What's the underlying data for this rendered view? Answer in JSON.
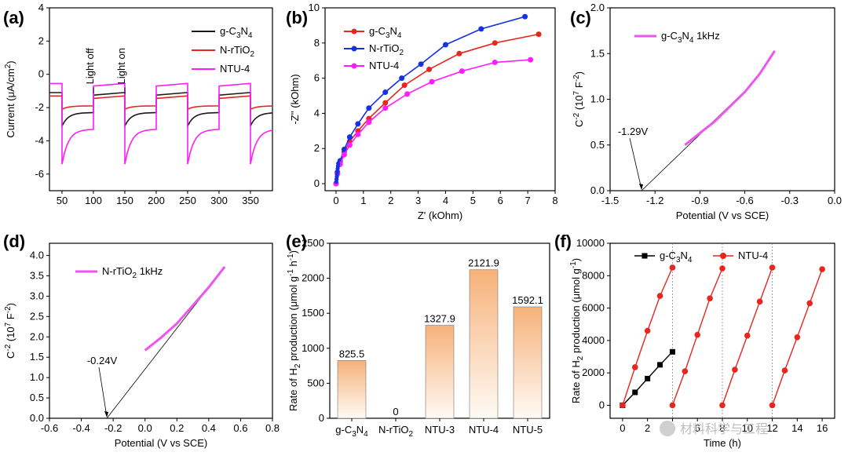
{
  "chart_data": [
    {
      "id": "a",
      "panel_label": "(a)",
      "type": "line",
      "xlabel": "",
      "ylabel": "Current (μA/cm²)",
      "xlim": [
        30,
        385
      ],
      "ylim": [
        -7,
        4
      ],
      "xticks": [
        50,
        100,
        150,
        200,
        250,
        300,
        350
      ],
      "yticks": [
        -6,
        -4,
        -2,
        0,
        2,
        4
      ],
      "xtick_labels": [
        "50",
        "100",
        "150",
        "200",
        "250",
        "300",
        "350"
      ],
      "ytick_labels": [
        "-6",
        "-4",
        "-2",
        "0",
        "2",
        "4"
      ],
      "annotations": [
        {
          "text": "Light off",
          "x": 100,
          "y": -0.5
        },
        {
          "text": "Light on",
          "x": 150,
          "y": -0.5
        }
      ],
      "legend": [
        "g-C3N4",
        "N-rTiO2",
        "NTU-4"
      ],
      "series": [
        {
          "name": "g-C3N4",
          "color": "#1a1a1a",
          "dark": -1.1,
          "peak": -3.1,
          "light": -2.3
        },
        {
          "name": "N-rTiO2",
          "color": "#e8261e",
          "dark": -1.3,
          "peak": -2.1,
          "light": -1.9
        },
        {
          "name": "NTU-4",
          "color": "#ff1cff",
          "dark": -0.55,
          "peak": -5.4,
          "light": -3.3
        }
      ],
      "light_on": [
        50,
        150,
        250,
        350
      ],
      "light_off": [
        100,
        200,
        300
      ]
    },
    {
      "id": "b",
      "panel_label": "(b)",
      "type": "line",
      "xlabel": "Z' (kOhm)",
      "ylabel": "-Z'' (kOhm)",
      "xlim": [
        -0.4,
        8
      ],
      "ylim": [
        -0.4,
        10
      ],
      "xticks": [
        0,
        1,
        2,
        3,
        4,
        5,
        6,
        7,
        8
      ],
      "yticks": [
        0,
        2,
        4,
        6,
        8,
        10
      ],
      "xtick_labels": [
        "0",
        "1",
        "2",
        "3",
        "4",
        "5",
        "6",
        "7",
        "8"
      ],
      "ytick_labels": [
        "0",
        "2",
        "4",
        "6",
        "8",
        "10"
      ],
      "legend": [
        "g-C3N4",
        "N-rTiO2",
        "NTU-4"
      ],
      "series": [
        {
          "name": "g-C3N4",
          "color": "#e8261e",
          "x": [
            0,
            0.05,
            0.15,
            0.3,
            0.5,
            0.8,
            1.2,
            1.8,
            2.5,
            3.4,
            4.5,
            5.8,
            7.4
          ],
          "y": [
            0,
            0.6,
            1.2,
            1.8,
            2.4,
            3.0,
            3.7,
            4.6,
            5.6,
            6.5,
            7.4,
            8.0,
            8.5
          ]
        },
        {
          "name": "N-rTiO2",
          "color": "#1431e6",
          "x": [
            0,
            0.05,
            0.15,
            0.3,
            0.5,
            0.8,
            1.2,
            1.8,
            2.4,
            3.1,
            4.0,
            5.3,
            6.9
          ],
          "y": [
            0,
            0.65,
            1.3,
            1.95,
            2.65,
            3.4,
            4.3,
            5.2,
            6.0,
            6.8,
            7.9,
            8.8,
            9.5
          ]
        },
        {
          "name": "NTU-4",
          "color": "#ff1cff",
          "x": [
            0,
            0.05,
            0.15,
            0.3,
            0.5,
            0.8,
            1.2,
            1.8,
            2.6,
            3.5,
            4.6,
            5.8,
            7.1
          ],
          "y": [
            0,
            0.55,
            1.1,
            1.65,
            2.2,
            2.8,
            3.5,
            4.3,
            5.1,
            5.8,
            6.4,
            6.9,
            7.05
          ]
        }
      ]
    },
    {
      "id": "c",
      "panel_label": "(c)",
      "type": "line",
      "xlabel": "Potential (V vs SCE)",
      "ylabel": "C⁻² (10⁷ F⁻²)",
      "xlim": [
        -1.5,
        0
      ],
      "ylim": [
        0,
        2
      ],
      "xticks": [
        -1.5,
        -1.2,
        -0.9,
        -0.6,
        -0.3,
        0
      ],
      "yticks": [
        0,
        0.5,
        1,
        1.5,
        2
      ],
      "xtick_labels": [
        "-1.5",
        "-1.2",
        "-0.9",
        "-0.6",
        "-0.3",
        "0.0"
      ],
      "ytick_labels": [
        "0.0",
        "0.5",
        "1.0",
        "1.5",
        "2.0"
      ],
      "legend": [
        "g-C3N4  1kHz"
      ],
      "intercept_label": "-1.29V",
      "intercept": -1.29,
      "series": [
        {
          "name": "g-C3N4 1kHz",
          "color": "#ee55ee",
          "x": [
            -1.0,
            -0.9,
            -0.8,
            -0.7,
            -0.6,
            -0.5,
            -0.4
          ],
          "y": [
            0.5,
            0.63,
            0.76,
            0.92,
            1.08,
            1.28,
            1.53
          ]
        }
      ],
      "fit": {
        "x": [
          -1.29,
          -0.55
        ],
        "y": [
          0,
          1.17
        ]
      }
    },
    {
      "id": "d",
      "panel_label": "(d)",
      "type": "line",
      "xlabel": "Potential (V vs SCE)",
      "ylabel": "C⁻² (10⁷ F⁻²)",
      "xlim": [
        -0.6,
        0.8
      ],
      "ylim": [
        0,
        4.3
      ],
      "xticks": [
        -0.6,
        -0.4,
        -0.2,
        0,
        0.2,
        0.4,
        0.6,
        0.8
      ],
      "yticks": [
        0,
        0.5,
        1,
        1.5,
        2,
        2.5,
        3,
        3.5,
        4
      ],
      "xtick_labels": [
        "-0.6",
        "-0.4",
        "-0.2",
        "0.0",
        "0.2",
        "0.4",
        "0.6",
        "0.8"
      ],
      "ytick_labels": [
        "0.0",
        "0.5",
        "1.0",
        "1.5",
        "2.0",
        "2.5",
        "3.0",
        "3.5",
        "4.0"
      ],
      "legend": [
        "N-rTiO2 1kHz"
      ],
      "intercept_label": "-0.24V",
      "intercept": -0.24,
      "series": [
        {
          "name": "N-rTiO2 1kHz",
          "color": "#ee55ee",
          "x": [
            0,
            0.1,
            0.2,
            0.3,
            0.4,
            0.5
          ],
          "y": [
            1.67,
            1.98,
            2.33,
            2.77,
            3.22,
            3.72
          ]
        }
      ],
      "fit": {
        "x": [
          -0.24,
          0.5
        ],
        "y": [
          0,
          3.72
        ]
      }
    },
    {
      "id": "e",
      "panel_label": "(e)",
      "type": "bar",
      "xlabel": "",
      "ylabel": "Rate of H₂ production (μmol g⁻¹ h⁻¹)",
      "ylim": [
        0,
        2500
      ],
      "yticks": [
        0,
        500,
        1000,
        1500,
        2000,
        2500
      ],
      "ytick_labels": [
        "0",
        "500",
        "1000",
        "1500",
        "2000",
        "2500"
      ],
      "categories": [
        "g-C3N4",
        "N-rTiO2",
        "NTU-3",
        "NTU-4",
        "NTU-5"
      ],
      "values": [
        825.5,
        0,
        1327.9,
        2121.9,
        1592.1
      ],
      "value_labels": [
        "825.5",
        "0",
        "1327.9",
        "2121.9",
        "1592.1"
      ]
    },
    {
      "id": "f",
      "panel_label": "(f)",
      "type": "line",
      "xlabel": "Time (h)",
      "ylabel": "Rate of H₂ production (μmol g⁻¹)",
      "xlim": [
        -1,
        17
      ],
      "ylim": [
        -800,
        10000
      ],
      "xticks": [
        0,
        2,
        4,
        6,
        8,
        10,
        12,
        14,
        16
      ],
      "yticks": [
        0,
        2000,
        4000,
        6000,
        8000,
        10000
      ],
      "xtick_labels": [
        "0",
        "2",
        "4",
        "6",
        "8",
        "10",
        "12",
        "14",
        "16"
      ],
      "ytick_labels": [
        "0",
        "2000",
        "4000",
        "6000",
        "8000",
        "10000"
      ],
      "legend": [
        "g-C3N4",
        "NTU-4"
      ],
      "vlines": [
        4,
        8,
        12
      ],
      "series": [
        {
          "name": "g-C3N4",
          "color": "#000000",
          "x": [
            0,
            1,
            2,
            3,
            4
          ],
          "y": [
            0,
            800,
            1650,
            2500,
            3300
          ]
        },
        {
          "name": "NTU-4",
          "color": "#e8261e",
          "x": [
            0,
            1,
            2,
            3,
            4,
            4,
            5,
            6,
            7,
            8,
            8,
            9,
            10,
            11,
            12,
            12,
            13,
            14,
            15,
            16
          ],
          "y": [
            0,
            2350,
            4600,
            6750,
            8500,
            0,
            2100,
            4350,
            6600,
            8450,
            0,
            2200,
            4300,
            6400,
            8500,
            0,
            2150,
            4200,
            6300,
            8400
          ]
        }
      ]
    }
  ],
  "watermark": "材料科学与工程"
}
